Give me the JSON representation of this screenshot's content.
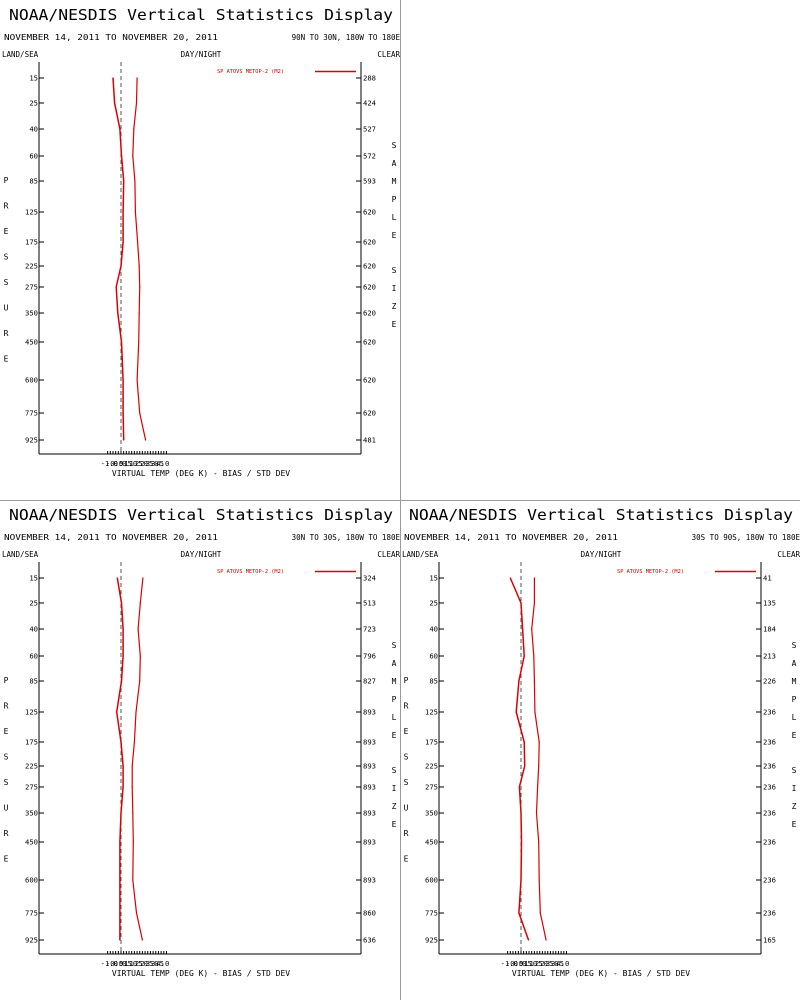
{
  "colors": {
    "background": "#ffffff",
    "bias_line": "#dd0000",
    "std_line": "#dd0000",
    "zero_line": "#555555",
    "text": "#000000",
    "legend_text": "#cc0000",
    "divider": "#9a9a9a"
  },
  "chart_data": [
    {
      "type": "line",
      "title": "NOAA/NESDIS Vertical Statistics Display",
      "subtitle": "NOVEMBER 14, 2011 TO NOVEMBER 20, 2011",
      "region": "90N TO 30N, 180W TO 180E",
      "land_sea": "LAND/SEA",
      "day_night": "DAY/NIGHT",
      "clear": "CLEAR",
      "ylabel": "PRESSURE",
      "ylabel2": "SAMPLE SIZE",
      "xlabel": "VIRTUAL TEMP (DEG K) - BIAS / STD DEV",
      "xlim": [
        -1.5,
        4.5
      ],
      "x_ticks": [
        -1.0,
        -0.5,
        0.0,
        0.5,
        1.0,
        1.5,
        2.0,
        2.5,
        3.0,
        3.5,
        4.0
      ],
      "x_tick_labels": [
        "-1.0",
        "-0.5",
        "0.0",
        "0.5",
        "1.0",
        "1.5",
        "2.0",
        "2.5",
        "3.0",
        "3.5",
        "4.0"
      ],
      "pressure_labels": [
        "15",
        "25",
        "40",
        "60",
        "85",
        "125",
        "175",
        "225",
        "275",
        "350",
        "450",
        "600",
        "775",
        "925"
      ],
      "sample_sizes": [
        "288",
        "424",
        "527",
        "572",
        "593",
        "620",
        "620",
        "620",
        "620",
        "620",
        "620",
        "620",
        "620",
        "481"
      ],
      "series": [
        {
          "name": "SP ATOVS METOP-2 (M2)",
          "kind": "bias",
          "values": [
            -0.75,
            -0.6,
            -0.1,
            0.05,
            0.25,
            0.2,
            0.2,
            0.0,
            -0.45,
            -0.3,
            0.05,
            0.2,
            0.2,
            0.25
          ]
        },
        {
          "name": "",
          "kind": "std",
          "values": [
            1.5,
            1.45,
            1.2,
            1.1,
            1.3,
            1.35,
            1.55,
            1.7,
            1.75,
            1.7,
            1.65,
            1.5,
            1.75,
            2.3
          ]
        }
      ]
    },
    {
      "type": "line",
      "title": "NOAA/NESDIS Vertical Statistics Display",
      "subtitle": "NOVEMBER 14, 2011 TO NOVEMBER 20, 2011",
      "region": "30N TO 30S, 180W TO 180E",
      "land_sea": "LAND/SEA",
      "day_night": "DAY/NIGHT",
      "clear": "CLEAR",
      "ylabel": "PRESSURE",
      "ylabel2": "SAMPLE SIZE",
      "xlabel": "VIRTUAL TEMP (DEG K) - BIAS / STD DEV",
      "xlim": [
        -1.5,
        4.5
      ],
      "x_ticks": [
        -1.0,
        -0.5,
        0.0,
        0.5,
        1.0,
        1.5,
        2.0,
        2.5,
        3.0,
        3.5,
        4.0
      ],
      "x_tick_labels": [
        "-1.0",
        "-0.5",
        "0.0",
        "0.5",
        "1.0",
        "1.5",
        "2.0",
        "2.5",
        "3.0",
        "3.5",
        "4.0"
      ],
      "pressure_labels": [
        "15",
        "25",
        "40",
        "60",
        "85",
        "125",
        "175",
        "225",
        "275",
        "350",
        "450",
        "600",
        "775",
        "925"
      ],
      "sample_sizes": [
        "324",
        "513",
        "723",
        "796",
        "827",
        "893",
        "893",
        "893",
        "893",
        "893",
        "893",
        "893",
        "860",
        "636"
      ],
      "series": [
        {
          "name": "SP ATOVS METOP-2 (M2)",
          "kind": "bias",
          "values": [
            -0.35,
            0.05,
            0.2,
            0.2,
            0.05,
            -0.4,
            0.0,
            0.2,
            0.2,
            0.0,
            -0.1,
            -0.1,
            -0.1,
            -0.1
          ]
        },
        {
          "name": "",
          "kind": "std",
          "values": [
            2.05,
            1.8,
            1.6,
            1.8,
            1.75,
            1.4,
            1.25,
            1.05,
            1.05,
            1.1,
            1.15,
            1.1,
            1.45,
            2.0
          ]
        }
      ]
    },
    {
      "type": "line",
      "title": "NOAA/NESDIS Vertical Statistics Display",
      "subtitle": "NOVEMBER 14, 2011 TO NOVEMBER 20, 2011",
      "region": "30S TO 90S, 180W TO 180E",
      "land_sea": "LAND/SEA",
      "day_night": "DAY/NIGHT",
      "clear": "CLEAR",
      "ylabel": "PRESSURE",
      "ylabel2": "SAMPLE SIZE",
      "xlabel": "VIRTUAL TEMP (DEG K) - BIAS / STD DEV",
      "xlim": [
        -1.5,
        4.5
      ],
      "x_ticks": [
        -1.0,
        -0.5,
        0.0,
        0.5,
        1.0,
        1.5,
        2.0,
        2.5,
        3.0,
        3.5,
        4.0
      ],
      "x_tick_labels": [
        "-1.0",
        "-0.5",
        "0.0",
        "0.5",
        "1.0",
        "1.5",
        "2.0",
        "2.5",
        "3.0",
        "3.5",
        "4.0"
      ],
      "pressure_labels": [
        "15",
        "25",
        "40",
        "60",
        "85",
        "125",
        "175",
        "225",
        "275",
        "350",
        "450",
        "600",
        "775",
        "925"
      ],
      "sample_sizes": [
        "41",
        "135",
        "184",
        "213",
        "226",
        "236",
        "236",
        "236",
        "236",
        "236",
        "236",
        "236",
        "236",
        "165"
      ],
      "series": [
        {
          "name": "SP ATOVS METOP-2 (M2)",
          "kind": "bias",
          "values": [
            -1.0,
            0.0,
            0.15,
            0.3,
            -0.2,
            -0.45,
            0.3,
            0.35,
            -0.15,
            0.0,
            0.05,
            0.0,
            -0.2,
            0.7
          ]
        },
        {
          "name": "",
          "kind": "std",
          "values": [
            1.25,
            1.25,
            1.0,
            1.2,
            1.25,
            1.3,
            1.7,
            1.65,
            1.55,
            1.45,
            1.65,
            1.7,
            1.8,
            2.35
          ]
        }
      ]
    }
  ]
}
